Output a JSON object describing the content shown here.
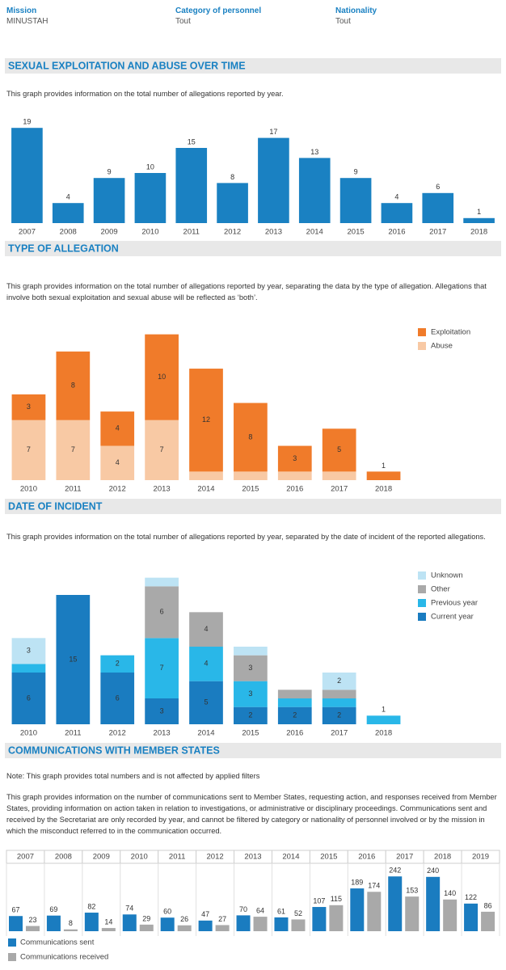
{
  "filters": [
    {
      "label": "Mission",
      "value": "MINUSTAH"
    },
    {
      "label": "Category of personnel",
      "value": "Tout"
    },
    {
      "label": "Nationality",
      "value": "Tout"
    }
  ],
  "chart_data": [
    {
      "type": "bar",
      "title": "SEXUAL EXPLOITATION AND ABUSE OVER TIME",
      "description": "This graph provides information on the total number of allegations reported by year.",
      "categories": [
        "2007",
        "2008",
        "2009",
        "2010",
        "2011",
        "2012",
        "2013",
        "2014",
        "2015",
        "2016",
        "2017",
        "2018"
      ],
      "values": [
        19,
        4,
        9,
        10,
        15,
        8,
        17,
        13,
        9,
        4,
        6,
        1
      ],
      "color": "#1a81c2",
      "ylim": [
        0,
        20
      ]
    },
    {
      "type": "stacked_bar",
      "title": "TYPE OF ALLEGATION",
      "description": "This graph provides information on the total number of allegations reported by year, separating the data by the type of allegation. Allegations that involve both sexual exploitation and sexual abuse will be reflected as ‘both’.",
      "categories": [
        "2010",
        "2011",
        "2012",
        "2013",
        "2014",
        "2015",
        "2016",
        "2017",
        "2018"
      ],
      "series": [
        {
          "name": "Exploitation",
          "color": "#f07b2a",
          "values": [
            3,
            8,
            4,
            10,
            12,
            8,
            3,
            5,
            1
          ]
        },
        {
          "name": "Abuse",
          "color": "#f8c9a4",
          "values": [
            7,
            7,
            4,
            7,
            1,
            1,
            1,
            1,
            null
          ]
        }
      ],
      "ylim": [
        0,
        18
      ],
      "legend": "right"
    },
    {
      "type": "stacked_bar",
      "title": "DATE OF INCIDENT",
      "description": "This graph provides information on the total number of allegations reported by year, separated by the date of incident of the reported allegations.",
      "categories": [
        "2010",
        "2011",
        "2012",
        "2013",
        "2014",
        "2015",
        "2016",
        "2017",
        "2018"
      ],
      "series": [
        {
          "name": "Unknown",
          "color": "#bde3f4",
          "values": [
            3,
            null,
            null,
            1,
            null,
            1,
            null,
            2,
            null
          ]
        },
        {
          "name": "Other",
          "color": "#a9a9a9",
          "values": [
            null,
            null,
            null,
            6,
            4,
            3,
            1,
            1,
            null
          ]
        },
        {
          "name": "Previous year",
          "color": "#29b7e8",
          "values": [
            1,
            null,
            2,
            7,
            4,
            3,
            1,
            1,
            1
          ]
        },
        {
          "name": "Current year",
          "color": "#1a7cc0",
          "values": [
            6,
            15,
            6,
            3,
            5,
            2,
            2,
            2,
            null
          ]
        }
      ],
      "ylim": [
        0,
        18
      ],
      "legend": "right"
    },
    {
      "type": "grouped_bar",
      "title": "COMMUNICATIONS WITH MEMBER STATES",
      "note": "Note: This graph provides total numbers and is not affected by applied filters",
      "description": "This graph provides information on the number of communications sent to Member States, requesting action, and responses received from Member States, providing information on action taken in relation to investigations, or administrative or disciplinary proceedings. Communications sent and received by the Secretariat are only recorded by year, and cannot be filtered by category or nationality of personnel involved or by the mission in which the misconduct referred to in the communication occurred.",
      "categories": [
        "2007",
        "2008",
        "2009",
        "2010",
        "2011",
        "2012",
        "2013",
        "2014",
        "2015",
        "2016",
        "2017",
        "2018",
        "2019"
      ],
      "series": [
        {
          "name": "Communications sent",
          "color": "#1a7cc0",
          "values": [
            67,
            69,
            82,
            74,
            60,
            47,
            70,
            61,
            107,
            189,
            242,
            240,
            122
          ]
        },
        {
          "name": "Communications received",
          "color": "#a9a9a9",
          "values": [
            23,
            8,
            14,
            29,
            26,
            27,
            64,
            52,
            115,
            174,
            153,
            140,
            86
          ]
        }
      ],
      "ylim": [
        0,
        300
      ],
      "legend": "bottom"
    }
  ]
}
